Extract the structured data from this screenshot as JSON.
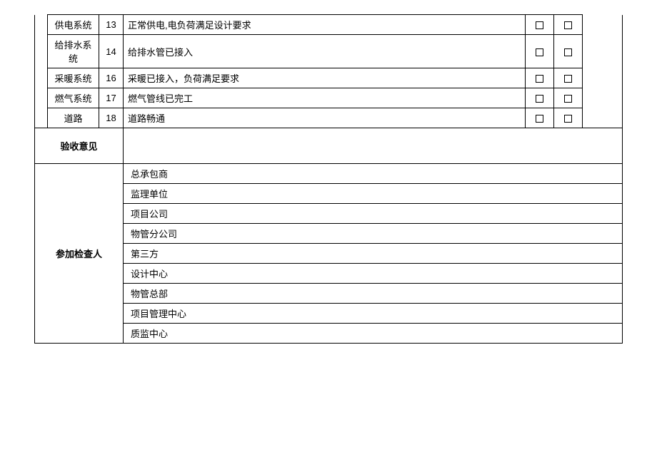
{
  "checklist": {
    "rows": [
      {
        "system": "供电系统",
        "num": "13",
        "desc": "正常供电,电负荷满足设计要求"
      },
      {
        "system": "给排水系统",
        "num": "14",
        "desc": "给排水管已接入"
      },
      {
        "system": "采暖系统",
        "num": "16",
        "desc": "采暖已接入，负荷满足要求"
      },
      {
        "system": "燃气系统",
        "num": "17",
        "desc": "燃气管线已完工"
      },
      {
        "system": "道路",
        "num": "18",
        "desc": "道路畅通"
      }
    ]
  },
  "sections": {
    "opinion_label": "验收意见",
    "inspectors_label": "参加检查人"
  },
  "parties": [
    "总承包商",
    "监理单位",
    "项目公司",
    "物管分公司",
    "第三方",
    "设计中心",
    "物管总部",
    "项目管理中心",
    "质监中心"
  ]
}
